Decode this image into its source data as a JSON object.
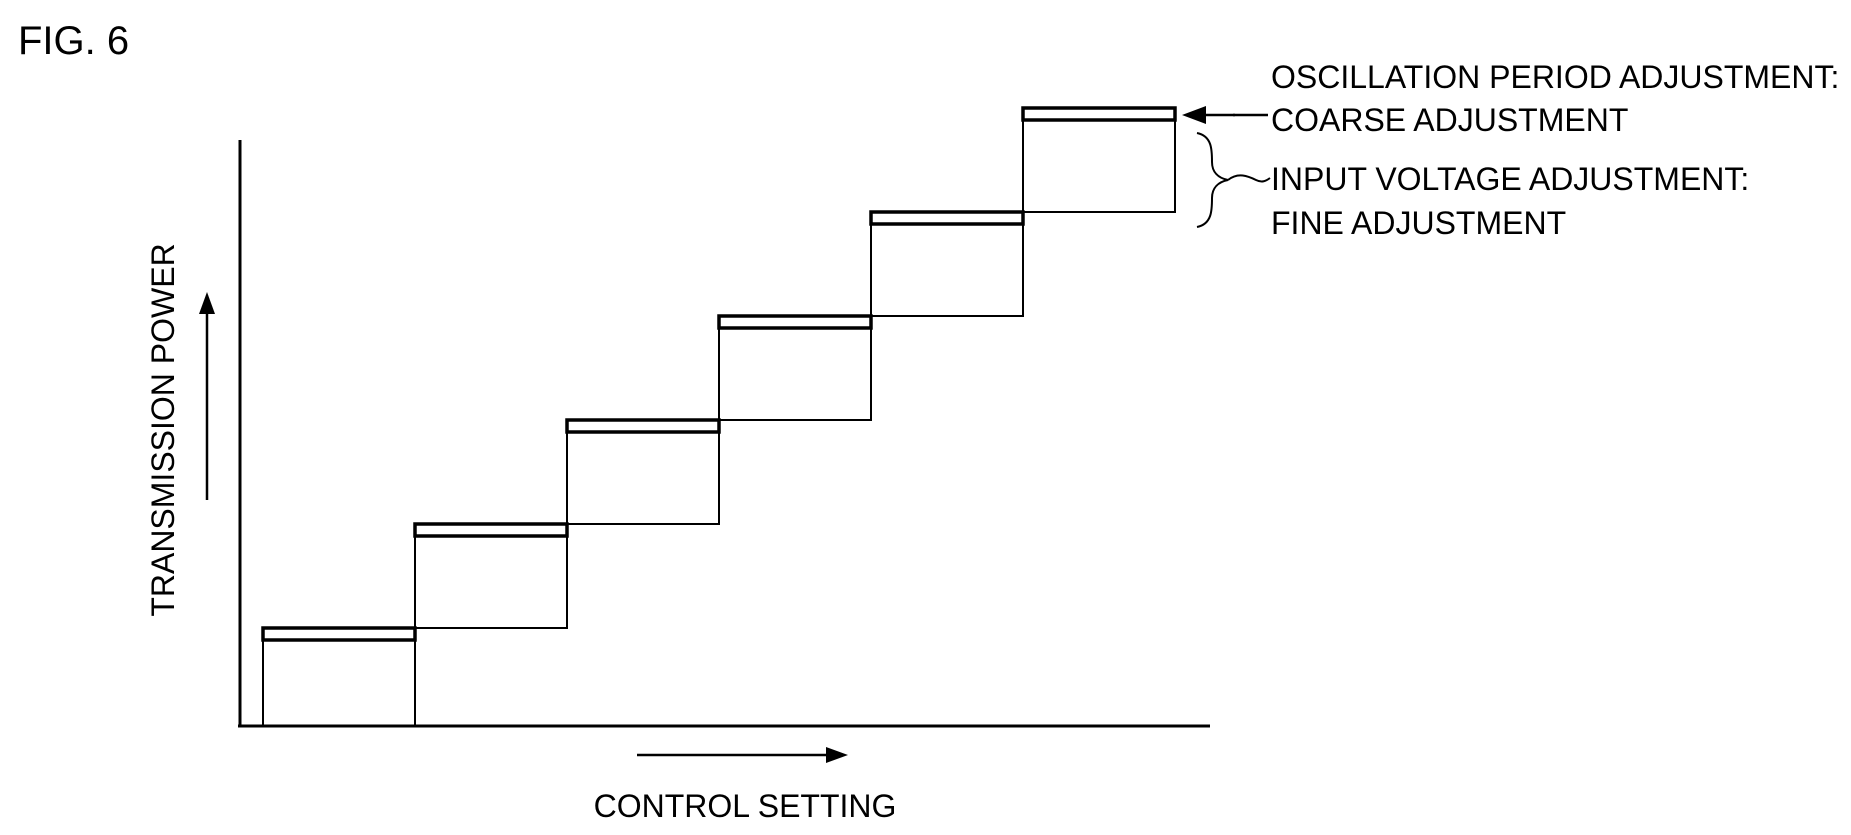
{
  "figure": {
    "label": "FIG. 6",
    "y_axis_label": "TRANSMISSION POWER",
    "x_axis_label": "CONTROL SETTING",
    "legend": {
      "coarse_line1": "OSCILLATION PERIOD ADJUSTMENT:",
      "coarse_line2": "COARSE ADJUSTMENT",
      "fine_line1": "INPUT VOLTAGE ADJUSTMENT:",
      "fine_line2": "FINE ADJUSTMENT"
    },
    "steps": [
      1,
      2,
      3,
      4,
      5,
      6
    ],
    "colors": {
      "ink": "#000000",
      "background": "#ffffff"
    }
  }
}
